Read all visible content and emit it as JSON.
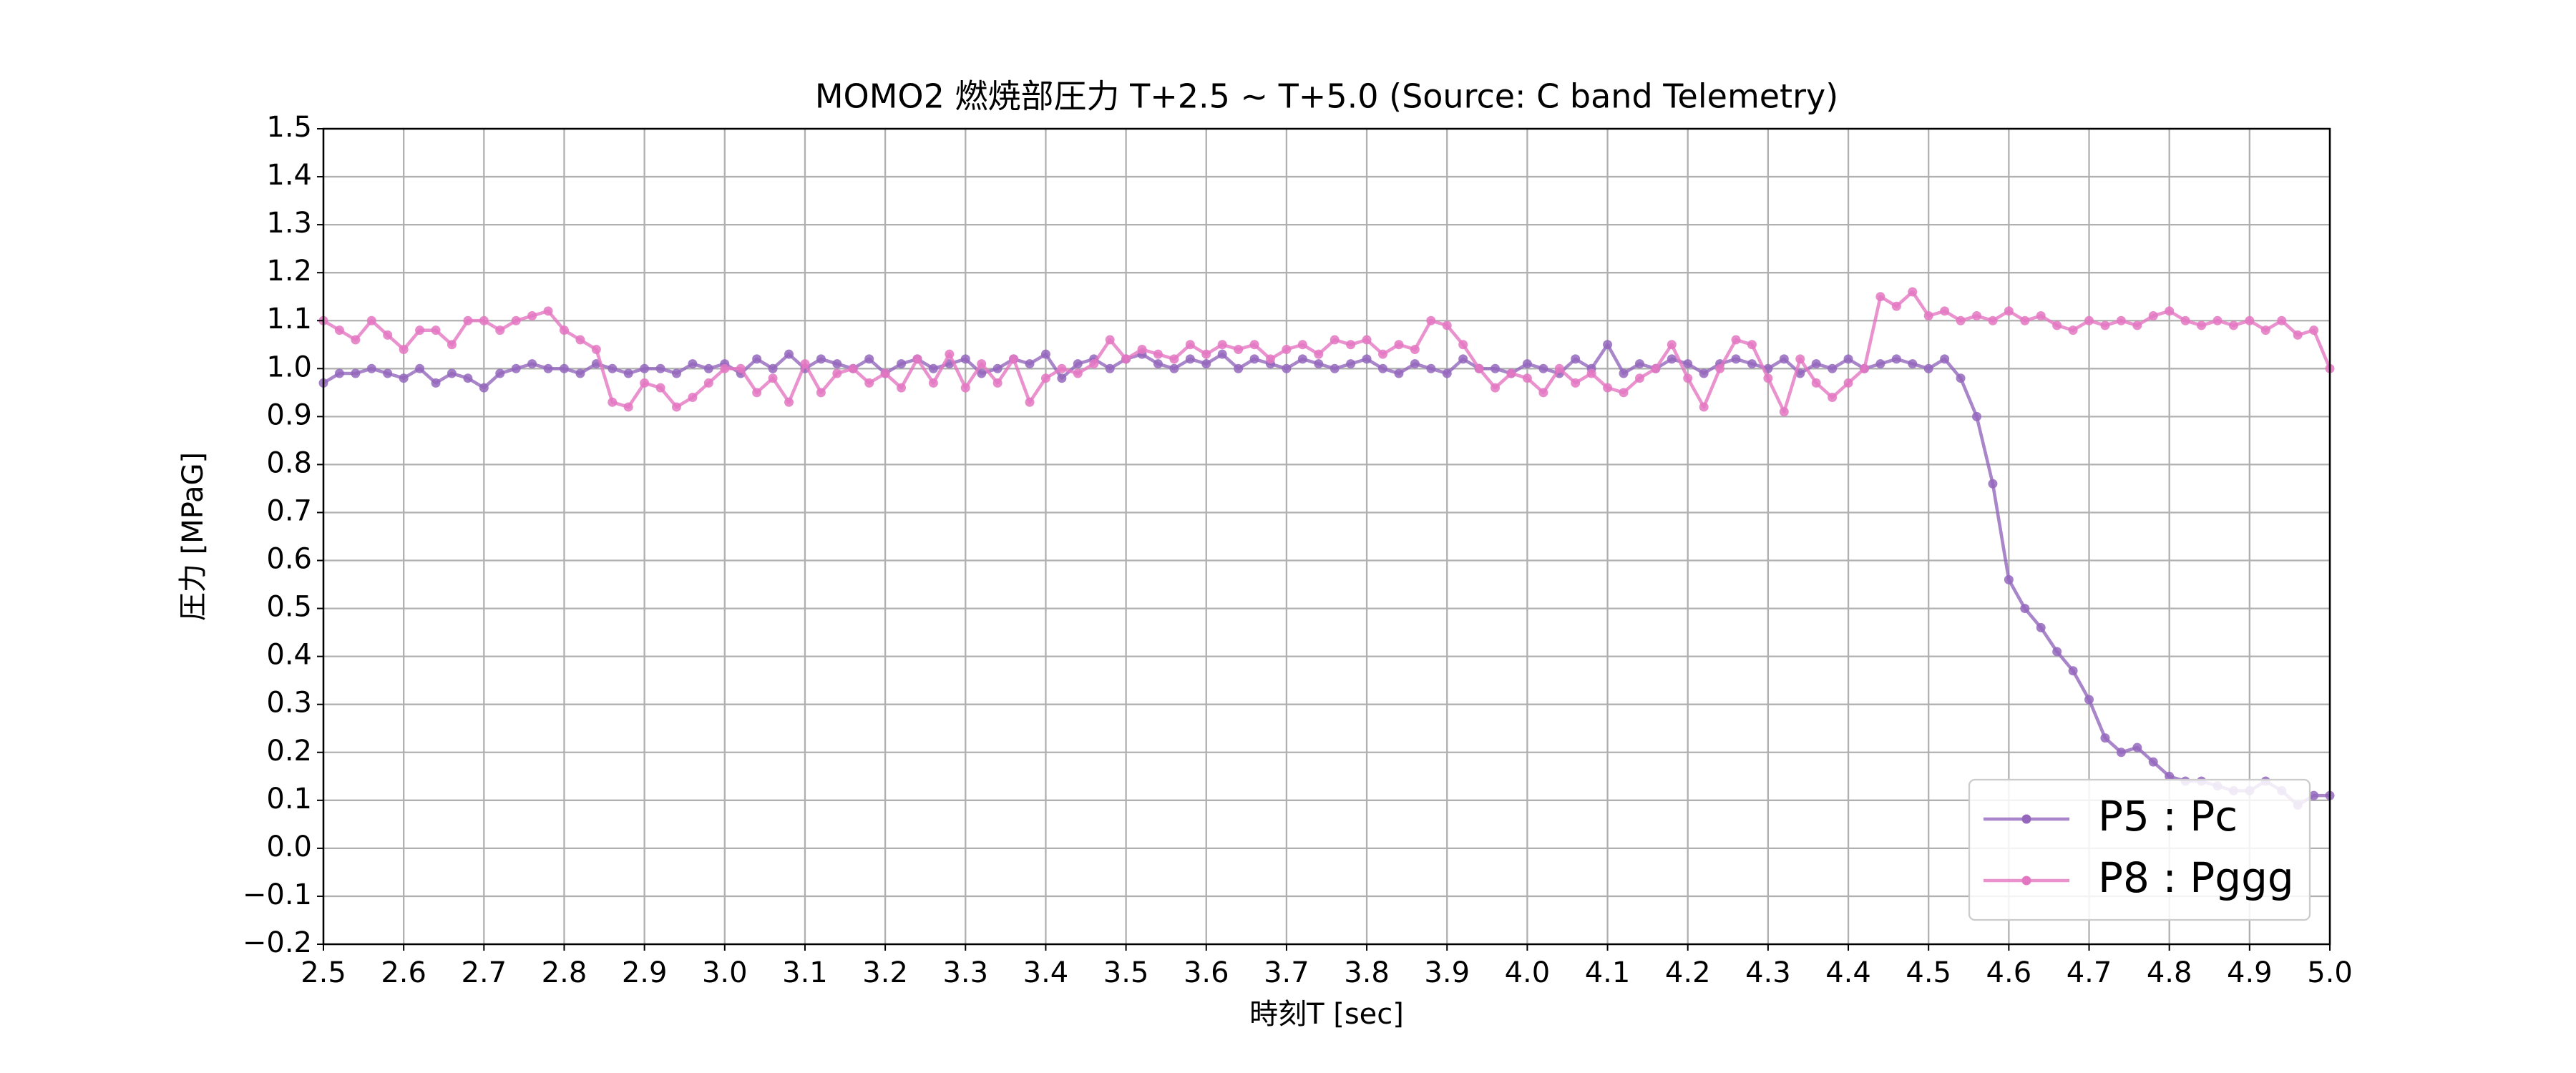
{
  "chart_data": {
    "type": "line",
    "title": "MOMO2 燃焼部圧力 T+2.5 ~ T+5.0 (Source: C band Telemetry)",
    "x_label": "時刻T [sec]",
    "y_label": "圧力 [MPaG]",
    "x": [
      2.5,
      2.52,
      2.54,
      2.56,
      2.58,
      2.6,
      2.62,
      2.64,
      2.66,
      2.68,
      2.7,
      2.72,
      2.74,
      2.76,
      2.78,
      2.8,
      2.82,
      2.84,
      2.86,
      2.88,
      2.9,
      2.92,
      2.94,
      2.96,
      2.98,
      3.0,
      3.02,
      3.04,
      3.06,
      3.08,
      3.1,
      3.12,
      3.14,
      3.16,
      3.18,
      3.2,
      3.22,
      3.24,
      3.26,
      3.28,
      3.3,
      3.32,
      3.34,
      3.36,
      3.38,
      3.4,
      3.42,
      3.44,
      3.46,
      3.48,
      3.5,
      3.52,
      3.54,
      3.56,
      3.58,
      3.6,
      3.62,
      3.64,
      3.66,
      3.68,
      3.7,
      3.72,
      3.74,
      3.76,
      3.78,
      3.8,
      3.82,
      3.84,
      3.86,
      3.88,
      3.9,
      3.92,
      3.94,
      3.96,
      3.98,
      4.0,
      4.02,
      4.04,
      4.06,
      4.08,
      4.1,
      4.12,
      4.14,
      4.16,
      4.18,
      4.2,
      4.22,
      4.24,
      4.26,
      4.28,
      4.3,
      4.32,
      4.34,
      4.36,
      4.38,
      4.4,
      4.42,
      4.44,
      4.46,
      4.48,
      4.5,
      4.52,
      4.54,
      4.56,
      4.58,
      4.6,
      4.62,
      4.64,
      4.66,
      4.68,
      4.7,
      4.72,
      4.74,
      4.76,
      4.78,
      4.8,
      4.82,
      4.84,
      4.86,
      4.88,
      4.9,
      4.92,
      4.94,
      4.96,
      4.98,
      5.0
    ],
    "series": [
      {
        "name": "P5 : Pc",
        "color": "#9467bd",
        "values": [
          0.97,
          0.99,
          0.99,
          1.0,
          0.99,
          0.98,
          1.0,
          0.97,
          0.99,
          0.98,
          0.96,
          0.99,
          1.0,
          1.01,
          1.0,
          1.0,
          0.99,
          1.01,
          1.0,
          0.99,
          1.0,
          1.0,
          0.99,
          1.01,
          1.0,
          1.01,
          0.99,
          1.02,
          1.0,
          1.03,
          1.0,
          1.02,
          1.01,
          1.0,
          1.02,
          0.99,
          1.01,
          1.02,
          1.0,
          1.01,
          1.02,
          0.99,
          1.0,
          1.02,
          1.01,
          1.03,
          0.98,
          1.01,
          1.02,
          1.0,
          1.02,
          1.03,
          1.01,
          1.0,
          1.02,
          1.01,
          1.03,
          1.0,
          1.02,
          1.01,
          1.0,
          1.02,
          1.01,
          1.0,
          1.01,
          1.02,
          1.0,
          0.99,
          1.01,
          1.0,
          0.99,
          1.02,
          1.0,
          1.0,
          0.99,
          1.01,
          1.0,
          0.99,
          1.02,
          1.0,
          1.05,
          0.99,
          1.01,
          1.0,
          1.02,
          1.01,
          0.99,
          1.01,
          1.02,
          1.01,
          1.0,
          1.02,
          0.99,
          1.01,
          1.0,
          1.02,
          1.0,
          1.01,
          1.02,
          1.01,
          1.0,
          1.02,
          0.98,
          0.9,
          0.76,
          0.56,
          0.5,
          0.46,
          0.41,
          0.37,
          0.31,
          0.23,
          0.2,
          0.21,
          0.18,
          0.15,
          0.14,
          0.14,
          0.13,
          0.12,
          0.12,
          0.14,
          0.12,
          0.09,
          0.11,
          0.11
        ]
      },
      {
        "name": "P8 : Pggg",
        "color": "#e377c2",
        "values": [
          1.1,
          1.08,
          1.06,
          1.1,
          1.07,
          1.04,
          1.08,
          1.08,
          1.05,
          1.1,
          1.1,
          1.08,
          1.1,
          1.11,
          1.12,
          1.08,
          1.06,
          1.04,
          0.93,
          0.92,
          0.97,
          0.96,
          0.92,
          0.94,
          0.97,
          1.0,
          1.0,
          0.95,
          0.98,
          0.93,
          1.01,
          0.95,
          0.99,
          1.0,
          0.97,
          0.99,
          0.96,
          1.02,
          0.97,
          1.03,
          0.96,
          1.01,
          0.97,
          1.02,
          0.93,
          0.98,
          1.0,
          0.99,
          1.01,
          1.06,
          1.02,
          1.04,
          1.03,
          1.02,
          1.05,
          1.03,
          1.05,
          1.04,
          1.05,
          1.02,
          1.04,
          1.05,
          1.03,
          1.06,
          1.05,
          1.06,
          1.03,
          1.05,
          1.04,
          1.1,
          1.09,
          1.05,
          1.0,
          0.96,
          0.99,
          0.98,
          0.95,
          1.0,
          0.97,
          0.99,
          0.96,
          0.95,
          0.98,
          1.0,
          1.05,
          0.98,
          0.92,
          1.0,
          1.06,
          1.05,
          0.98,
          0.91,
          1.02,
          0.97,
          0.94,
          0.97,
          1.0,
          1.15,
          1.13,
          1.16,
          1.11,
          1.12,
          1.1,
          1.11,
          1.1,
          1.12,
          1.1,
          1.11,
          1.09,
          1.08,
          1.1,
          1.09,
          1.1,
          1.09,
          1.11,
          1.12,
          1.1,
          1.09,
          1.1,
          1.09,
          1.1,
          1.08,
          1.1,
          1.07,
          1.08,
          1.0
        ]
      }
    ],
    "xlim": [
      2.5,
      5.0
    ],
    "xticks": [
      2.5,
      2.6,
      2.7,
      2.8,
      2.9,
      {
        "value": 3,
        "label": "3.0"
      },
      3.1,
      3.2,
      3.3,
      3.4,
      3.5,
      3.6,
      3.7,
      3.8,
      3.9,
      {
        "value": 4,
        "label": "4.0"
      },
      4.1,
      4.2,
      4.3,
      4.4,
      4.5,
      4.6,
      4.7,
      4.8,
      4.9,
      {
        "value": 5,
        "label": "5.0"
      }
    ],
    "ylim": [
      -0.2,
      1.5
    ],
    "yticks": [
      {
        "value": -0.2,
        "label": "−0.2"
      },
      {
        "value": -0.1,
        "label": "−0.1"
      },
      {
        "value": 0,
        "label": "0.0"
      },
      0.1,
      0.2,
      0.3,
      0.4,
      0.5,
      0.6,
      0.7,
      0.8,
      0.9,
      {
        "value": 1,
        "label": "1.0"
      },
      1.1,
      1.2,
      1.3,
      1.4,
      1.5
    ],
    "grid": true,
    "legend": "lower right"
  }
}
